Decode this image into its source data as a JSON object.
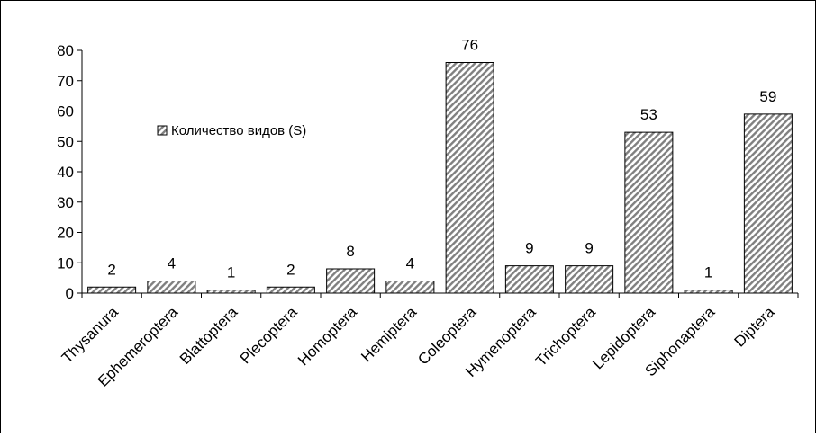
{
  "chart_data": {
    "type": "bar",
    "categories": [
      "Thysanura",
      "Ephemeroptera",
      "Blattoptera",
      "Plecoptera",
      "Homoptera",
      "Hemiptera",
      "Coleoptera",
      "Hymenoptera",
      "Trichoptera",
      "Lepidoptera",
      "Siphonaptera",
      "Diptera"
    ],
    "series": [
      {
        "name": "Количество видов (S)",
        "values": [
          2,
          4,
          1,
          2,
          8,
          4,
          76,
          9,
          9,
          53,
          1,
          59
        ],
        "labels": [
          "2",
          "4",
          "1",
          "2",
          "8",
          "4",
          "76",
          "9",
          "9",
          "53",
          "1",
          "59"
        ]
      }
    ],
    "title": "",
    "xlabel": "",
    "ylabel": "",
    "ylim": [
      0,
      80
    ],
    "yticks": [
      0,
      10,
      20,
      30,
      40,
      50,
      60,
      70,
      80
    ],
    "ytick_labels": [
      "0",
      "10",
      "20",
      "30",
      "40",
      "50",
      "60",
      "70",
      "80"
    ],
    "grid": false,
    "legend_position": "upper-left inside plot",
    "bar_fill": "diagonal-hatch",
    "colors": {
      "bar_stroke": "#000000",
      "hatch": "#808080",
      "background": "#ffffff"
    }
  }
}
